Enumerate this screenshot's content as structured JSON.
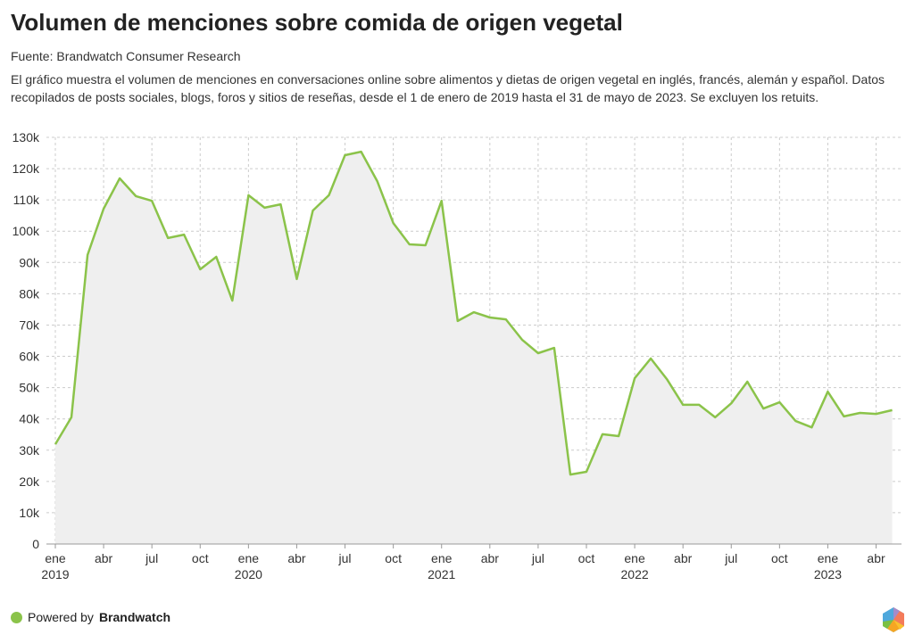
{
  "title": "Volumen de menciones sobre comida de origen vegetal",
  "source": "Fuente: Brandwatch Consumer Research",
  "description": "El gráfico muestra el volumen de menciones en conversaciones online sobre alimentos y dietas de origen vegetal en inglés, francés, alemán y español. Datos recopilados de posts sociales, blogs, foros y sitios de reseñas, desde el 1 de enero de 2019 hasta el 31 de mayo de 2023. Se excluyen los retuits.",
  "footer": {
    "prefix": "Powered by",
    "brand": "Brandwatch"
  },
  "colors": {
    "line": "#8bc34a",
    "area": "#efefef",
    "grid": "#cccccc"
  },
  "chart_data": {
    "type": "area",
    "title": "Volumen de menciones sobre comida de origen vegetal",
    "xlabel": "",
    "ylabel": "",
    "ylim": [
      0,
      130000
    ],
    "yticks": [
      0,
      10000,
      20000,
      30000,
      40000,
      50000,
      60000,
      70000,
      80000,
      90000,
      100000,
      110000,
      120000,
      130000
    ],
    "ytick_labels": [
      "0",
      "10k",
      "20k",
      "30k",
      "40k",
      "50k",
      "60k",
      "70k",
      "80k",
      "90k",
      "100k",
      "110k",
      "120k",
      "130k"
    ],
    "xticks": [
      {
        "month": 0,
        "label": "ene",
        "year": "2019"
      },
      {
        "month": 3,
        "label": "abr"
      },
      {
        "month": 6,
        "label": "jul"
      },
      {
        "month": 9,
        "label": "oct"
      },
      {
        "month": 12,
        "label": "ene",
        "year": "2020"
      },
      {
        "month": 15,
        "label": "abr"
      },
      {
        "month": 18,
        "label": "jul"
      },
      {
        "month": 21,
        "label": "oct"
      },
      {
        "month": 24,
        "label": "ene",
        "year": "2021"
      },
      {
        "month": 27,
        "label": "abr"
      },
      {
        "month": 30,
        "label": "jul"
      },
      {
        "month": 33,
        "label": "oct"
      },
      {
        "month": 36,
        "label": "ene",
        "year": "2022"
      },
      {
        "month": 39,
        "label": "abr"
      },
      {
        "month": 42,
        "label": "jul"
      },
      {
        "month": 45,
        "label": "oct"
      },
      {
        "month": 48,
        "label": "ene",
        "year": "2023"
      },
      {
        "month": 51,
        "label": "abr"
      }
    ],
    "grid": true,
    "start": "2019-01",
    "values": [
      31900,
      40500,
      92400,
      107200,
      116900,
      111200,
      109700,
      97800,
      98900,
      87800,
      91800,
      77800,
      111500,
      107500,
      108600,
      84700,
      106600,
      111500,
      124300,
      125400,
      116000,
      102600,
      95800,
      95500,
      109700,
      71300,
      74100,
      72400,
      71800,
      65300,
      61000,
      62700,
      22200,
      23100,
      35100,
      34500,
      53000,
      59300,
      52700,
      44500,
      44500,
      40500,
      45000,
      51900,
      43300,
      45300,
      39300,
      37300,
      48700,
      40800,
      41900,
      41600,
      42800
    ]
  }
}
